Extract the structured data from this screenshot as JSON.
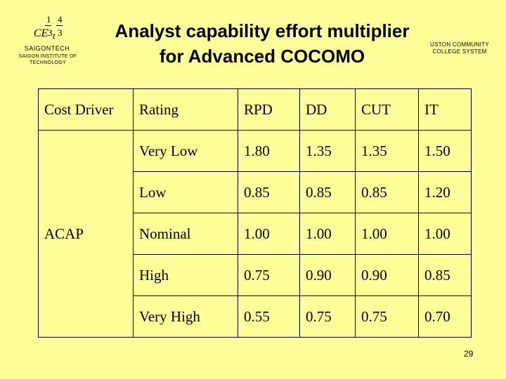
{
  "logo": {
    "mark": {
      "n1": "1",
      "n2": "4",
      "ce": "CE",
      "d1": "3",
      "t": "t",
      "d2": "3"
    },
    "name": "SAIGONTECH",
    "full_name": "SAIGON INSTITUTE OF TECHNOLOGY"
  },
  "title": {
    "line1": "Analyst capability effort multiplier",
    "line2": "for Advanced COCOMO"
  },
  "partner_logo": {
    "line1": "USTON COMMUNITY",
    "line2": "COLLEGE SYSTEM"
  },
  "table": {
    "headers": [
      "Cost Driver",
      "Rating",
      "RPD",
      "DD",
      "CUT",
      "IT"
    ],
    "driver": "ACAP",
    "rows": [
      {
        "rating": "Very Low",
        "values": [
          "1.80",
          "1.35",
          "1.35",
          "1.50"
        ]
      },
      {
        "rating": "Low",
        "values": [
          "0.85",
          "0.85",
          "0.85",
          "1.20"
        ]
      },
      {
        "rating": "Nominal",
        "values": [
          "1.00",
          "1.00",
          "1.00",
          "1.00"
        ]
      },
      {
        "rating": "High",
        "values": [
          "0.75",
          "0.90",
          "0.90",
          "0.85"
        ]
      },
      {
        "rating": "Very High",
        "values": [
          "0.55",
          "0.75",
          "0.75",
          "0.70"
        ]
      }
    ]
  },
  "page_number": "29"
}
